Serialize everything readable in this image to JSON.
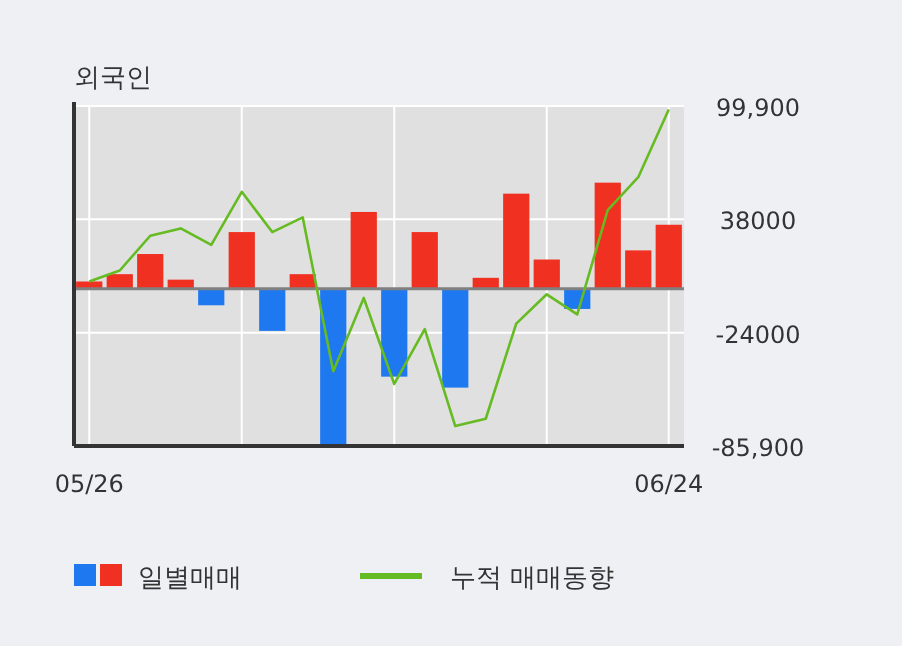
{
  "chart_data": {
    "type": "bar",
    "title": "외국인",
    "categories": [
      "05/26",
      null,
      null,
      null,
      null,
      null,
      null,
      null,
      null,
      null,
      null,
      null,
      null,
      null,
      null,
      null,
      null,
      null,
      null,
      "06/24"
    ],
    "series": [
      {
        "name": "일별매매",
        "colors": [
          "#f03020",
          "#f03020",
          "#f03020",
          "#f03020",
          "#1e78f0",
          "#f03020",
          "#1e78f0",
          "#f03020",
          "#1e78f0",
          "#f03020",
          "#1e78f0",
          "#f03020",
          "#1e78f0",
          "#f03020",
          "#f03020",
          "#f03020",
          "#1e78f0",
          "#f03020",
          "#f03020",
          "#f03020"
        ],
        "values": [
          4000,
          8000,
          19000,
          5000,
          -9000,
          31000,
          -23000,
          8000,
          -85000,
          42000,
          -48000,
          31000,
          -54000,
          6000,
          52000,
          16000,
          -11000,
          58000,
          21000,
          35000
        ]
      },
      {
        "name": "누적 매매동향",
        "type": "line",
        "color": "#66bb22",
        "values": [
          4000,
          10000,
          29000,
          33000,
          24000,
          53000,
          31000,
          39000,
          -45000,
          -5000,
          -52000,
          -22000,
          -75000,
          -71000,
          -19000,
          -3000,
          -14000,
          43000,
          61000,
          98000
        ]
      }
    ],
    "ylim": [
      -85900,
      99900
    ],
    "yticks": [
      {
        "value": 99900,
        "label": "99,900"
      },
      38000,
      -24000,
      {
        "value": -85900,
        "label": "-85,900"
      }
    ],
    "grid": true,
    "legend": "bottom"
  }
}
